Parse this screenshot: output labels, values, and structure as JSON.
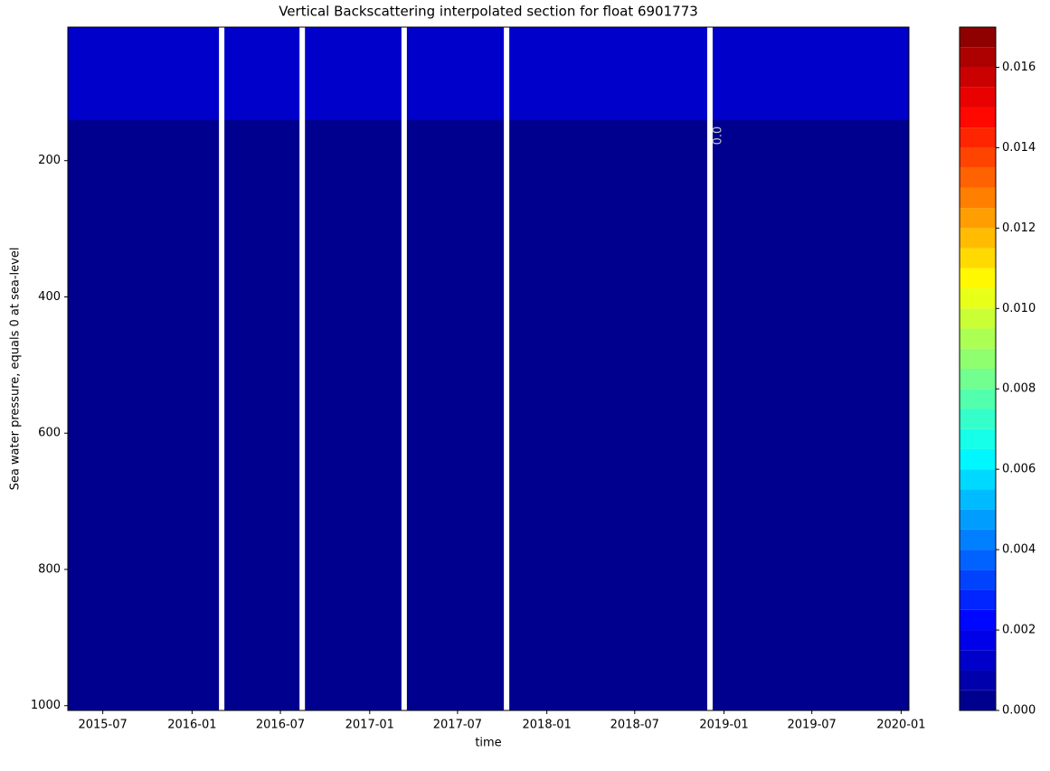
{
  "chart_data": {
    "type": "contourf",
    "title": "Vertical Backscattering interpolated section for float 6901773",
    "xlabel": "time",
    "ylabel": "Sea water pressure, equals 0 at sea-level",
    "xlim": [
      "2015-04-20",
      "2020-01-17"
    ],
    "xticks": [
      "2015-07",
      "2016-01",
      "2016-07",
      "2017-01",
      "2017-07",
      "2018-01",
      "2018-07",
      "2019-01",
      "2019-07",
      "2020-01"
    ],
    "ylim": [
      4,
      1007
    ],
    "y_inverted": true,
    "yticks": [
      200,
      400,
      600,
      800,
      1000
    ],
    "gaps": [
      "2016-03-02",
      "2016-08-15",
      "2017-03-13",
      "2017-10-10",
      "2018-12-03"
    ],
    "layers": [
      {
        "pressure": [
          4,
          140
        ],
        "value": 0.0011
      },
      {
        "pressure": [
          140,
          1007
        ],
        "value": 0.0004
      }
    ],
    "annotations": [
      "0.0"
    ],
    "colormap": "jet",
    "clim": [
      0,
      0.017
    ],
    "levels": [
      0,
      0.0005,
      0.001,
      0.0015,
      0.002,
      0.0025,
      0.003,
      0.0035,
      0.004,
      0.0045,
      0.005,
      0.0055,
      0.006,
      0.0065,
      0.007,
      0.0075,
      0.008,
      0.0085,
      0.009,
      0.0095,
      0.01,
      0.0105,
      0.011,
      0.0115,
      0.012,
      0.0125,
      0.013,
      0.0135,
      0.014,
      0.0145,
      0.015,
      0.0155,
      0.016,
      0.0165,
      0.017
    ],
    "cticks": [
      {
        "value": 0,
        "label": "0.000"
      },
      0.002,
      0.004,
      0.006,
      0.008,
      {
        "value": 0.01,
        "label": "0.010"
      },
      0.012,
      0.014,
      0.016
    ]
  }
}
